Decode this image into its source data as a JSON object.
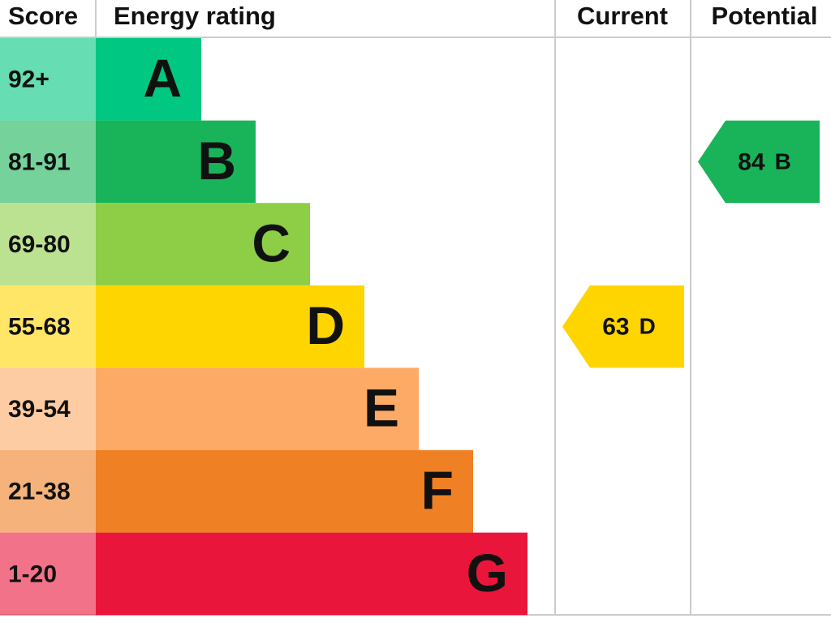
{
  "header": {
    "score": "Score",
    "rating": "Energy rating",
    "current": "Current",
    "potential": "Potential"
  },
  "bands": [
    {
      "range": "92+",
      "letter": "A",
      "color": "#00c781"
    },
    {
      "range": "81-91",
      "letter": "B",
      "color": "#19b459"
    },
    {
      "range": "69-80",
      "letter": "C",
      "color": "#8dce46"
    },
    {
      "range": "55-68",
      "letter": "D",
      "color": "#ffd500"
    },
    {
      "range": "39-54",
      "letter": "E",
      "color": "#fcaa65"
    },
    {
      "range": "21-38",
      "letter": "F",
      "color": "#ef8023"
    },
    {
      "range": "1-20",
      "letter": "G",
      "color": "#e9153b"
    }
  ],
  "current": {
    "value": 63,
    "letter": "D"
  },
  "potential": {
    "value": 84,
    "letter": "B"
  }
}
